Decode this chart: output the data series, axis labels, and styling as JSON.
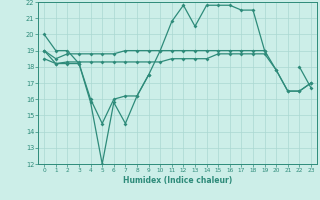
{
  "xlabel": "Humidex (Indice chaleur)",
  "x": [
    0,
    1,
    2,
    3,
    4,
    5,
    6,
    7,
    8,
    9,
    10,
    11,
    12,
    13,
    14,
    15,
    16,
    17,
    18,
    19,
    20,
    21,
    22,
    23
  ],
  "line1": [
    20,
    19,
    19,
    18.2,
    16,
    14.5,
    16,
    16.2,
    16.2,
    17.5,
    19,
    20.8,
    21.8,
    20.5,
    21.8,
    21.8,
    21.8,
    21.5,
    21.5,
    19,
    null,
    null,
    18,
    16.7
  ],
  "line2": [
    19,
    18.5,
    18.8,
    18.8,
    18.8,
    18.8,
    18.8,
    19.0,
    19.0,
    19.0,
    19.0,
    19.0,
    19.0,
    19.0,
    19.0,
    19.0,
    19.0,
    19.0,
    19.0,
    19.0,
    17.8,
    16.5,
    16.5,
    17.0
  ],
  "line3": [
    18.5,
    18.2,
    18.3,
    18.3,
    18.3,
    18.3,
    18.3,
    18.3,
    18.3,
    18.3,
    18.3,
    18.5,
    18.5,
    18.5,
    18.5,
    18.8,
    18.8,
    18.8,
    18.8,
    18.8,
    17.8,
    16.5,
    16.5,
    17.0
  ],
  "line4": [
    19,
    18.2,
    18.2,
    18.2,
    15.8,
    12,
    15.8,
    14.5,
    16.2,
    17.5,
    null,
    null,
    null,
    null,
    null,
    null,
    null,
    null,
    null,
    null,
    null,
    null,
    null,
    null
  ],
  "ylim": [
    12,
    22
  ],
  "xlim": [
    -0.5,
    23.5
  ],
  "yticks": [
    12,
    13,
    14,
    15,
    16,
    17,
    18,
    19,
    20,
    21,
    22
  ],
  "xticks": [
    0,
    1,
    2,
    3,
    4,
    5,
    6,
    7,
    8,
    9,
    10,
    11,
    12,
    13,
    14,
    15,
    16,
    17,
    18,
    19,
    20,
    21,
    22,
    23
  ],
  "line_color": "#2e8b7a",
  "bg_color": "#cceee8",
  "grid_color": "#aad8d2",
  "marker": "D",
  "markersize": 2.0,
  "linewidth": 0.9
}
